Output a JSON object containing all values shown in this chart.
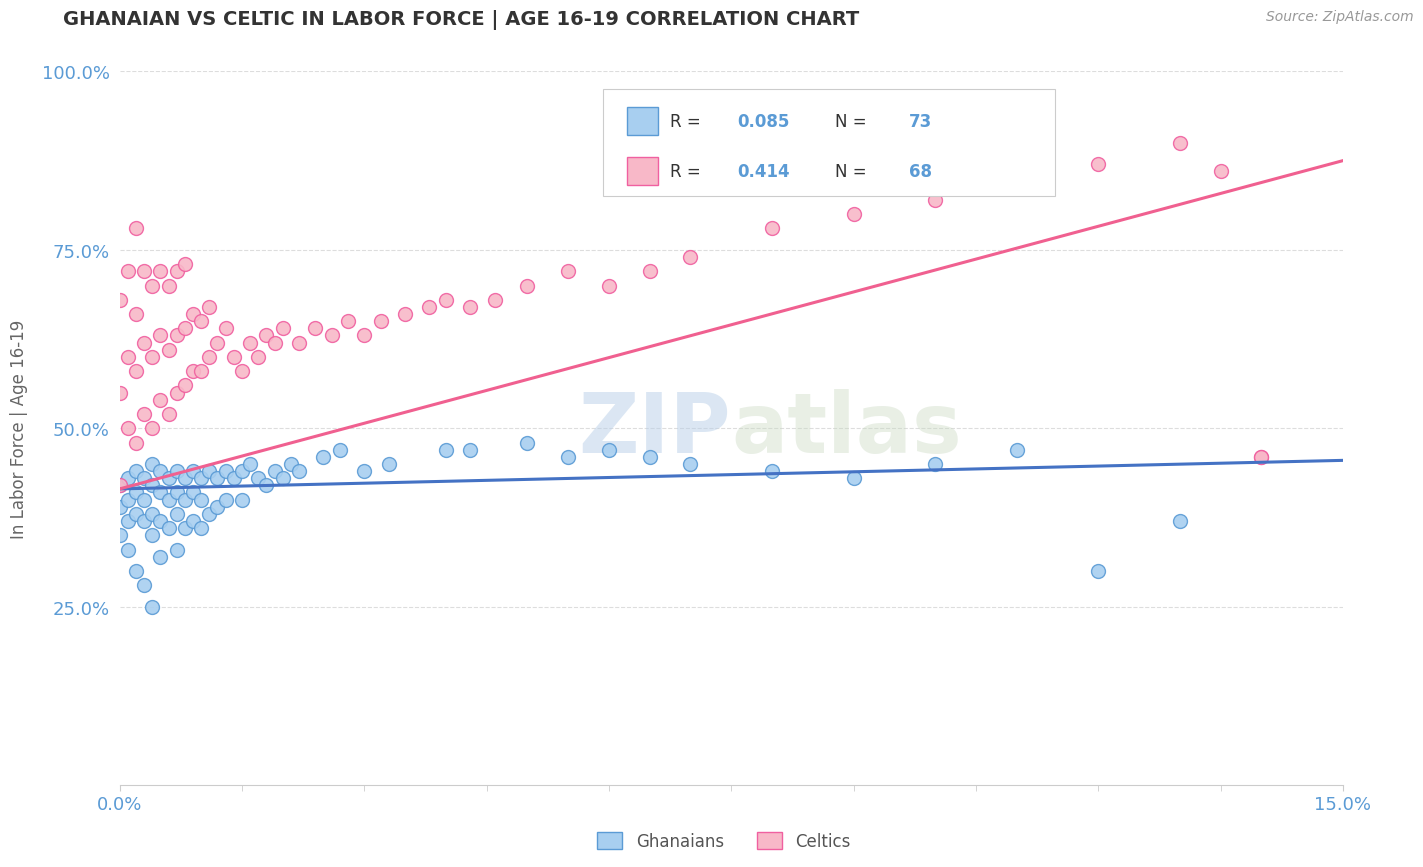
{
  "title": "GHANAIAN VS CELTIC IN LABOR FORCE | AGE 16-19 CORRELATION CHART",
  "source_text": "Source: ZipAtlas.com",
  "ylabel": "In Labor Force | Age 16-19",
  "xlim": [
    0.0,
    0.15
  ],
  "ylim": [
    0.0,
    1.0
  ],
  "ghanaian_color": "#a8cff0",
  "celtic_color": "#f8b8c8",
  "ghanaian_edge_color": "#5b9bd5",
  "celtic_edge_color": "#f060a0",
  "ghanaian_line_color": "#4472c4",
  "celtic_line_color": "#f06090",
  "R_ghanaian": 0.085,
  "N_ghanaian": 73,
  "R_celtic": 0.414,
  "N_celtic": 68,
  "legend_label_ghanaian": "Ghanaians",
  "legend_label_celtic": "Celtics",
  "watermark_zip": "ZIP",
  "watermark_atlas": "atlas",
  "tick_color": "#5b9bd5",
  "ylabel_color": "#666666",
  "title_color": "#333333",
  "source_color": "#999999",
  "grid_color": "#dddddd",
  "ghanaian_x": [
    0.0,
    0.0,
    0.0,
    0.001,
    0.001,
    0.001,
    0.001,
    0.002,
    0.002,
    0.002,
    0.002,
    0.003,
    0.003,
    0.003,
    0.003,
    0.004,
    0.004,
    0.004,
    0.004,
    0.004,
    0.005,
    0.005,
    0.005,
    0.005,
    0.006,
    0.006,
    0.006,
    0.007,
    0.007,
    0.007,
    0.007,
    0.008,
    0.008,
    0.008,
    0.009,
    0.009,
    0.009,
    0.01,
    0.01,
    0.01,
    0.011,
    0.011,
    0.012,
    0.012,
    0.013,
    0.013,
    0.014,
    0.015,
    0.015,
    0.016,
    0.017,
    0.018,
    0.019,
    0.02,
    0.021,
    0.022,
    0.025,
    0.027,
    0.03,
    0.033,
    0.04,
    0.043,
    0.05,
    0.055,
    0.06,
    0.065,
    0.07,
    0.08,
    0.09,
    0.1,
    0.11,
    0.12,
    0.13
  ],
  "ghanaian_y": [
    0.42,
    0.39,
    0.35,
    0.43,
    0.4,
    0.37,
    0.33,
    0.44,
    0.41,
    0.38,
    0.3,
    0.43,
    0.4,
    0.37,
    0.28,
    0.45,
    0.42,
    0.38,
    0.35,
    0.25,
    0.44,
    0.41,
    0.37,
    0.32,
    0.43,
    0.4,
    0.36,
    0.44,
    0.41,
    0.38,
    0.33,
    0.43,
    0.4,
    0.36,
    0.44,
    0.41,
    0.37,
    0.43,
    0.4,
    0.36,
    0.44,
    0.38,
    0.43,
    0.39,
    0.44,
    0.4,
    0.43,
    0.44,
    0.4,
    0.45,
    0.43,
    0.42,
    0.44,
    0.43,
    0.45,
    0.44,
    0.46,
    0.47,
    0.44,
    0.45,
    0.47,
    0.47,
    0.48,
    0.46,
    0.47,
    0.46,
    0.45,
    0.44,
    0.43,
    0.45,
    0.47,
    0.3,
    0.37
  ],
  "celtic_x": [
    0.0,
    0.0,
    0.0,
    0.001,
    0.001,
    0.001,
    0.002,
    0.002,
    0.002,
    0.002,
    0.003,
    0.003,
    0.003,
    0.004,
    0.004,
    0.004,
    0.005,
    0.005,
    0.005,
    0.006,
    0.006,
    0.006,
    0.007,
    0.007,
    0.007,
    0.008,
    0.008,
    0.008,
    0.009,
    0.009,
    0.01,
    0.01,
    0.011,
    0.011,
    0.012,
    0.013,
    0.014,
    0.015,
    0.016,
    0.017,
    0.018,
    0.019,
    0.02,
    0.022,
    0.024,
    0.026,
    0.028,
    0.03,
    0.032,
    0.035,
    0.038,
    0.04,
    0.043,
    0.046,
    0.05,
    0.055,
    0.06,
    0.065,
    0.07,
    0.08,
    0.09,
    0.1,
    0.11,
    0.12,
    0.13,
    0.135,
    0.14,
    0.14
  ],
  "celtic_y": [
    0.42,
    0.55,
    0.68,
    0.5,
    0.6,
    0.72,
    0.48,
    0.58,
    0.66,
    0.78,
    0.52,
    0.62,
    0.72,
    0.5,
    0.6,
    0.7,
    0.54,
    0.63,
    0.72,
    0.52,
    0.61,
    0.7,
    0.55,
    0.63,
    0.72,
    0.56,
    0.64,
    0.73,
    0.58,
    0.66,
    0.58,
    0.65,
    0.6,
    0.67,
    0.62,
    0.64,
    0.6,
    0.58,
    0.62,
    0.6,
    0.63,
    0.62,
    0.64,
    0.62,
    0.64,
    0.63,
    0.65,
    0.63,
    0.65,
    0.66,
    0.67,
    0.68,
    0.67,
    0.68,
    0.7,
    0.72,
    0.7,
    0.72,
    0.74,
    0.78,
    0.8,
    0.82,
    0.85,
    0.87,
    0.9,
    0.86,
    0.46,
    0.46
  ]
}
